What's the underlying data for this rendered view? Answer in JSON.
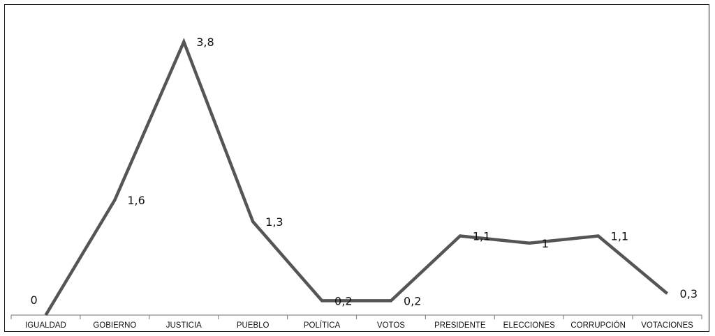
{
  "chart_data": {
    "type": "line",
    "categories": [
      "IGUALDAD",
      "GOBIERNO",
      "JUSTICIA",
      "PUEBLO",
      "POLÍTICA",
      "VOTOS",
      "PRESIDENTE",
      "ELECCIONES",
      "CORRUPCIÓN",
      "VOTACIONES"
    ],
    "series": [
      {
        "values": [
          0,
          1.6,
          3.8,
          1.3,
          0.2,
          0.2,
          1.1,
          1,
          1.1,
          0.3
        ],
        "data_labels": [
          "0",
          "1,6",
          "3,8",
          "1,3",
          "0,2",
          "0,2",
          "1,1",
          "1",
          "1,1",
          "0,3"
        ]
      }
    ],
    "title": "",
    "xlabel": "",
    "ylabel": "",
    "ylim": [
      0,
      3.8
    ],
    "grid": false,
    "legend": "none",
    "line_color": "#555555"
  }
}
